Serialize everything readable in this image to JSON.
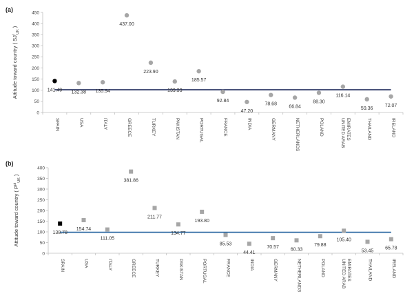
{
  "chart_data": [
    {
      "panel_label": "(a)",
      "type": "scatter",
      "ylabel": "Attitude toward country",
      "ylabel_symbol": "( SJ",
      "ylabel_sup": "i",
      "ylabel_sub": "UK",
      "ylabel_close": ")",
      "ylim": [
        0,
        450
      ],
      "yticks": [
        0,
        50,
        100,
        150,
        200,
        250,
        300,
        350,
        400,
        450
      ],
      "categories": [
        "SPAIN",
        "USA",
        "ITALY",
        "GREECE",
        "TURKEY",
        "PAKISTAN",
        "PORTUGAL",
        "FRANCE",
        "INDIA",
        "GERMANY",
        "NETHERLANDS",
        "POLAND",
        "UNITED ARAB EMIRATES",
        "THAILAND",
        "IRELAND"
      ],
      "values": [
        141.49,
        132.38,
        135.94,
        437.0,
        223.9,
        139.33,
        185.57,
        92.84,
        47.2,
        78.68,
        66.84,
        88.3,
        116.14,
        59.36,
        72.07
      ],
      "value_labels": [
        "141.49",
        "132.38",
        "135.94",
        "437.00",
        "223.90",
        "139.33",
        "185.57",
        "92.84",
        "47.20",
        "78.68",
        "66.84",
        "88.30",
        "116.14",
        "59.36",
        "72.07"
      ],
      "marker": "circle",
      "highlight_index": 0,
      "highlight_color": "#000000",
      "point_color": "#a6a6a6",
      "reference_line": 102,
      "reference_color": "#1f2a5c"
    },
    {
      "panel_label": "(b)",
      "type": "scatter",
      "ylabel": "Attitude toward country",
      "ylabel_symbol": "( P",
      "ylabel_sup": "pi",
      "ylabel_sub": "UK",
      "ylabel_close": ")",
      "ylim": [
        0,
        400
      ],
      "yticks": [
        0,
        50,
        100,
        150,
        200,
        250,
        300,
        350,
        400
      ],
      "categories": [
        "SPAIN",
        "USA",
        "ITALY",
        "GREECE",
        "TURKEY",
        "PAKISTAN",
        "PORTUGAL",
        "FRANCE",
        "INDIA",
        "GERMANY",
        "NETHERLANDS",
        "POLAND",
        "UNITED ARAB EMIRATES",
        "THAILAND",
        "IRELAND"
      ],
      "values": [
        138.78,
        154.74,
        111.05,
        381.86,
        211.77,
        134.77,
        193.8,
        85.53,
        44.41,
        70.57,
        60.33,
        79.88,
        105.4,
        53.45,
        65.78
      ],
      "value_labels": [
        "138.78",
        "154.74",
        "111.05",
        "381.86",
        "211.77",
        "134.77",
        "193.80",
        "85.53",
        "44.41",
        "70.57",
        "60.33",
        "79.88",
        "105.40",
        "53.45",
        "65.78"
      ],
      "marker": "square",
      "highlight_index": 0,
      "highlight_color": "#000000",
      "point_color": "#a6a6a6",
      "reference_line": 98,
      "reference_color": "#2e6aa3"
    }
  ]
}
